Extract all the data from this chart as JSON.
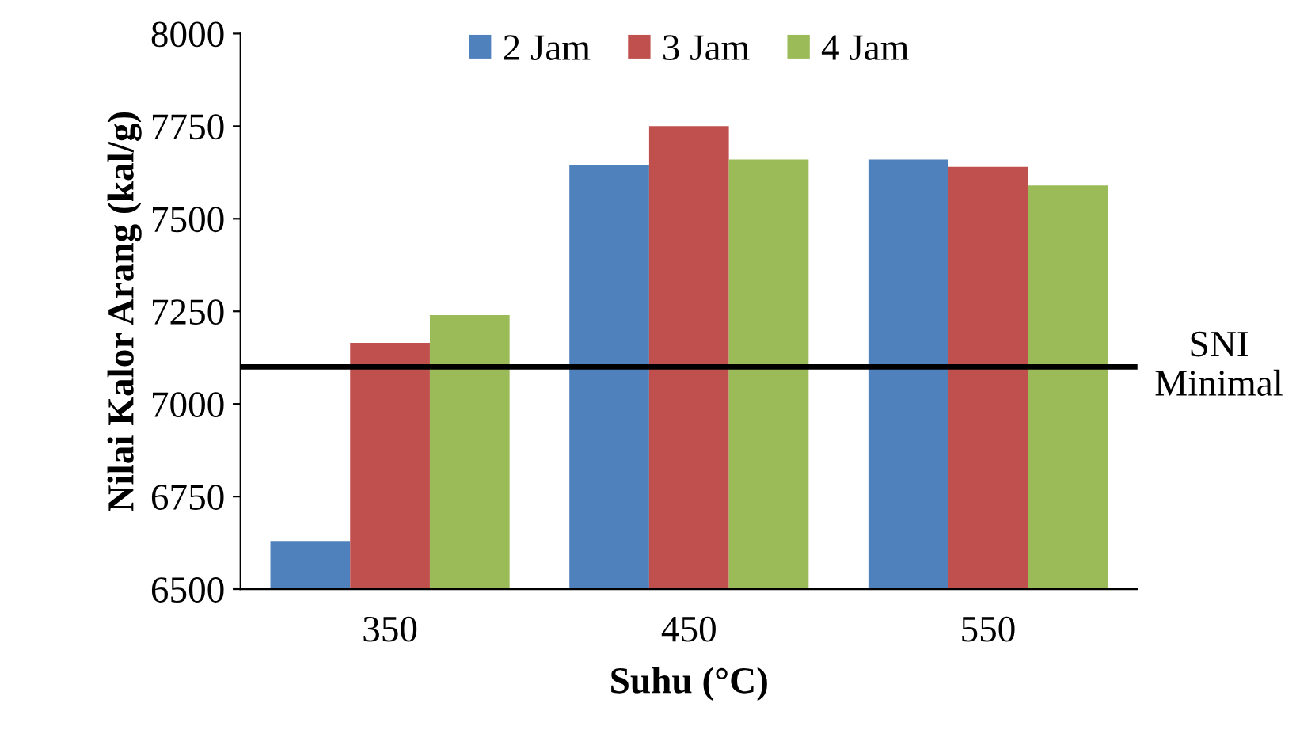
{
  "chart_data": {
    "type": "bar",
    "xlabel": "Suhu (°C)",
    "ylabel": "Nilai Kalor Arang (kal/g)",
    "categories": [
      "350",
      "450",
      "550"
    ],
    "series": [
      {
        "name": "2 Jam",
        "color": "#4f81bd",
        "values": [
          6630,
          7645,
          7660
        ]
      },
      {
        "name": "3 Jam",
        "color": "#c0504d",
        "values": [
          7165,
          7750,
          7640
        ]
      },
      {
        "name": "4 Jam",
        "color": "#9bbb59",
        "values": [
          7240,
          7660,
          7590
        ]
      }
    ],
    "ylim": [
      6500,
      8000
    ],
    "yticks": [
      6500,
      6750,
      7000,
      7250,
      7500,
      7750,
      8000
    ],
    "ref_lines": [
      {
        "axis": "y",
        "value": 7100,
        "label": "SNI\nMinimal",
        "color": "#000000"
      }
    ],
    "grid": false,
    "legend": "top"
  }
}
